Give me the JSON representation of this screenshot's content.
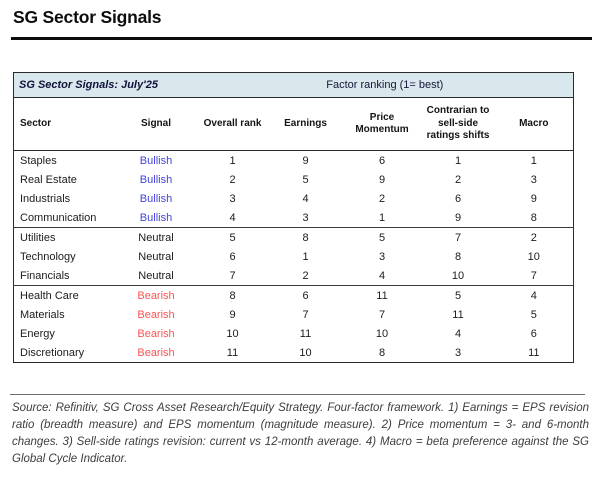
{
  "page": {
    "title": "SG Sector Signals"
  },
  "table": {
    "caption": "SG Sector Signals: July'25",
    "caption_right": "Factor ranking (1= best)",
    "columns": {
      "sector": "Sector",
      "signal": "Signal",
      "overall_rank": "Overall rank",
      "earnings": "Earnings",
      "price_momentum": "Price Momentum",
      "contrarian": "Contrarian to sell-side ratings shifts",
      "macro": "Macro"
    },
    "rows": [
      {
        "sector": "Staples",
        "signal": "Bullish",
        "overall_rank": 1,
        "earnings": 9,
        "price_momentum": 6,
        "contrarian": 1,
        "macro": 1,
        "group_end": false
      },
      {
        "sector": "Real Estate",
        "signal": "Bullish",
        "overall_rank": 2,
        "earnings": 5,
        "price_momentum": 9,
        "contrarian": 2,
        "macro": 3,
        "group_end": false
      },
      {
        "sector": "Industrials",
        "signal": "Bullish",
        "overall_rank": 3,
        "earnings": 4,
        "price_momentum": 2,
        "contrarian": 6,
        "macro": 9,
        "group_end": false
      },
      {
        "sector": "Communication",
        "signal": "Bullish",
        "overall_rank": 4,
        "earnings": 3,
        "price_momentum": 1,
        "contrarian": 9,
        "macro": 8,
        "group_end": true
      },
      {
        "sector": "Utilities",
        "signal": "Neutral",
        "overall_rank": 5,
        "earnings": 8,
        "price_momentum": 5,
        "contrarian": 7,
        "macro": 2,
        "group_end": false
      },
      {
        "sector": "Technology",
        "signal": "Neutral",
        "overall_rank": 6,
        "earnings": 1,
        "price_momentum": 3,
        "contrarian": 8,
        "macro": 10,
        "group_end": false
      },
      {
        "sector": "Financials",
        "signal": "Neutral",
        "overall_rank": 7,
        "earnings": 2,
        "price_momentum": 4,
        "contrarian": 10,
        "macro": 7,
        "group_end": true
      },
      {
        "sector": "Health Care",
        "signal": "Bearish",
        "overall_rank": 8,
        "earnings": 6,
        "price_momentum": 11,
        "contrarian": 5,
        "macro": 4,
        "group_end": false
      },
      {
        "sector": "Materials",
        "signal": "Bearish",
        "overall_rank": 9,
        "earnings": 7,
        "price_momentum": 7,
        "contrarian": 11,
        "macro": 5,
        "group_end": false
      },
      {
        "sector": "Energy",
        "signal": "Bearish",
        "overall_rank": 10,
        "earnings": 11,
        "price_momentum": 10,
        "contrarian": 4,
        "macro": 6,
        "group_end": false
      },
      {
        "sector": "Discretionary",
        "signal": "Bearish",
        "overall_rank": 11,
        "earnings": 10,
        "price_momentum": 8,
        "contrarian": 3,
        "macro": 11,
        "group_end": false
      }
    ]
  },
  "colors": {
    "bullish": "#4343dd",
    "bearish": "#fb5454",
    "neutral": "#1c1c1c",
    "caption_bg": "#d9e8ec"
  },
  "footnote": "Source: Refinitiv, SG Cross Asset Research/Equity Strategy. Four-factor framework. 1) Earnings = EPS revision ratio (breadth measure) and EPS momentum (magnitude measure). 2) Price momentum = 3- and 6-month changes. 3) Sell-side ratings revision: current vs 12-month average. 4) Macro = beta preference against the SG Global Cycle Indicator."
}
